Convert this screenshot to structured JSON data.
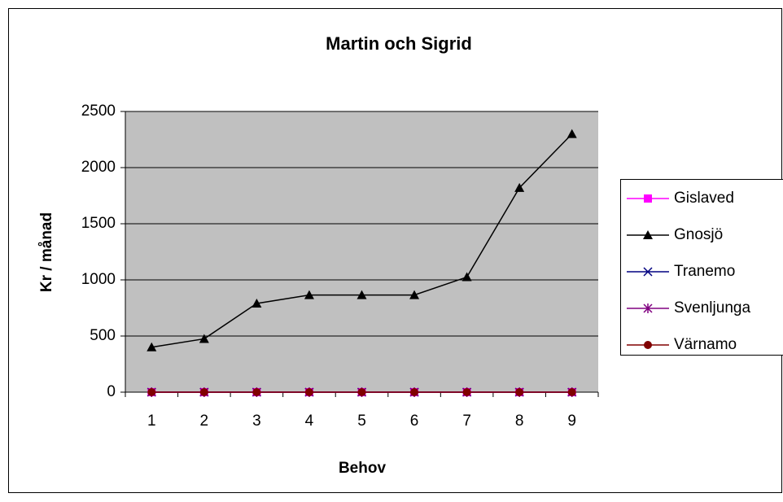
{
  "chart_data": {
    "type": "line",
    "title": "Martin och Sigrid",
    "x_label": "Behov",
    "y_label": "Kr / månad",
    "categories": [
      "1",
      "2",
      "3",
      "4",
      "5",
      "6",
      "7",
      "8",
      "9"
    ],
    "series": [
      {
        "name": "Gislaved",
        "color": "#ff00ff",
        "marker": "square",
        "values": [
          0,
          0,
          0,
          0,
          0,
          0,
          0,
          0,
          0
        ]
      },
      {
        "name": "Gnosjö",
        "color": "#000000",
        "marker": "triangle",
        "values": [
          400,
          475,
          790,
          865,
          865,
          865,
          1025,
          1820,
          2300
        ]
      },
      {
        "name": "Tranemo",
        "color": "#000080",
        "marker": "x",
        "values": [
          0,
          0,
          0,
          0,
          0,
          0,
          0,
          0,
          0
        ]
      },
      {
        "name": "Svenljunga",
        "color": "#800080",
        "marker": "star",
        "values": [
          0,
          0,
          0,
          0,
          0,
          0,
          0,
          0,
          0
        ]
      },
      {
        "name": "Värnamo",
        "color": "#800000",
        "marker": "circle",
        "values": [
          0,
          0,
          0,
          0,
          0,
          0,
          0,
          0,
          0
        ]
      }
    ],
    "ylim": [
      0,
      2500
    ],
    "yticks": [
      0,
      500,
      1000,
      1500,
      2000,
      2500
    ],
    "grid": true,
    "legend": "right",
    "plot_background": "#c0c0c0"
  }
}
